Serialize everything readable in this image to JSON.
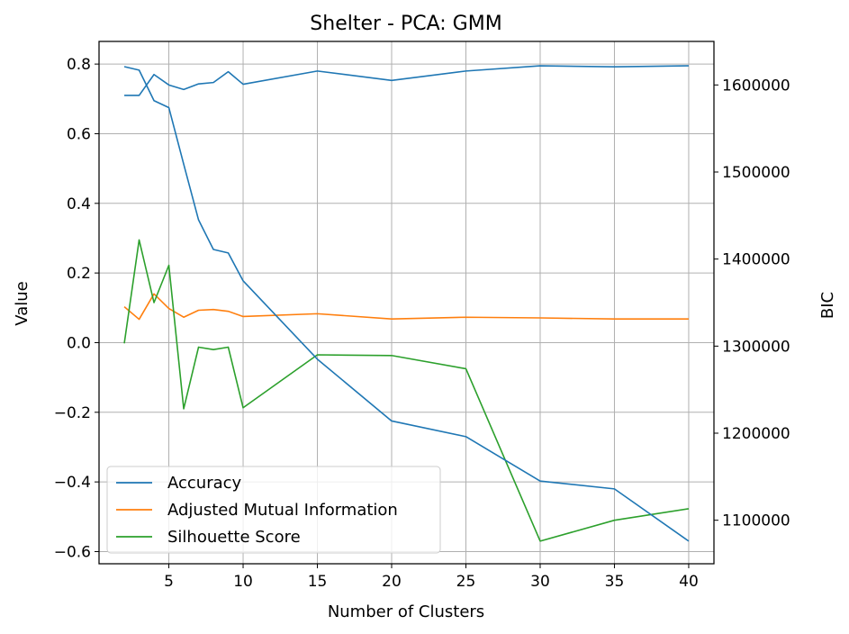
{
  "chart_data": {
    "type": "line",
    "title": "Shelter - PCA: GMM",
    "xlabel": "Number of Clusters",
    "ylabel": "Value",
    "y2label": "BIC",
    "xlim": [
      0.3,
      41.7
    ],
    "ylim": [
      -0.635,
      0.865
    ],
    "y2lim": [
      1050000,
      1650000
    ],
    "xticks": [
      5,
      10,
      15,
      20,
      25,
      30,
      35,
      40
    ],
    "yticks": [
      -0.6,
      -0.4,
      -0.2,
      0.0,
      0.2,
      0.4,
      0.6,
      0.8
    ],
    "yticklabels": [
      "−0.6",
      "−0.4",
      "−0.2",
      "0.0",
      "0.2",
      "0.4",
      "0.6",
      "0.8"
    ],
    "y2ticks": [
      1100000,
      1200000,
      1300000,
      1400000,
      1500000,
      1600000
    ],
    "grid": true,
    "legend_position": "lower-left",
    "x": [
      2,
      3,
      4,
      5,
      6,
      7,
      8,
      9,
      10,
      15,
      20,
      25,
      30,
      35,
      40
    ],
    "series": [
      {
        "name": "Accuracy",
        "color": "#1f77b4",
        "axis": "left",
        "values": [
          0.71,
          0.71,
          0.77,
          0.74,
          0.727,
          0.743,
          0.747,
          0.778,
          0.742,
          0.78,
          0.753,
          0.78,
          0.795,
          0.792,
          0.795
        ]
      },
      {
        "name": "Adjusted Mutual Information",
        "color": "#ff7f0e",
        "axis": "left",
        "values": [
          0.103,
          0.067,
          0.14,
          0.098,
          0.073,
          0.093,
          0.095,
          0.09,
          0.075,
          0.083,
          0.068,
          0.073,
          0.071,
          0.068,
          0.068
        ]
      },
      {
        "name": "Silhouette Score",
        "color": "#2ca02c",
        "axis": "left",
        "values": [
          -0.002,
          0.295,
          0.115,
          0.222,
          -0.19,
          -0.013,
          -0.02,
          -0.013,
          -0.187,
          -0.035,
          -0.037,
          -0.075,
          -0.57,
          -0.51,
          -0.477
        ]
      },
      {
        "name": "BIC",
        "color": "#1f77b4",
        "axis": "right",
        "legend": false,
        "values": [
          1621000,
          1617000,
          1582000,
          1574000,
          1509000,
          1445000,
          1411000,
          1407000,
          1375000,
          1285000,
          1214000,
          1196000,
          1145000,
          1136000,
          1076000
        ]
      }
    ]
  }
}
